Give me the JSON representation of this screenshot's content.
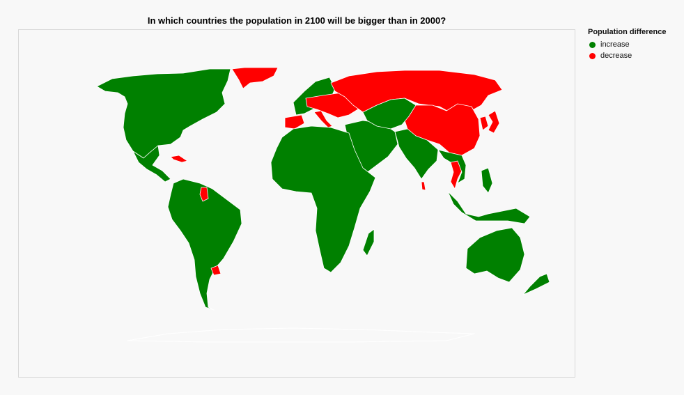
{
  "title": "In which countries the population in 2100 will be bigger than in 2000?",
  "legend": {
    "title": "Population difference",
    "items": [
      {
        "label": "increase",
        "color": "#008000"
      },
      {
        "label": "decrease",
        "color": "#ff0000"
      }
    ]
  },
  "map": {
    "projection": "equirectangular-style world map",
    "background": "#f8f8f8",
    "border_color": "#ffffff",
    "regions": [
      {
        "name": "North America",
        "category": "increase"
      },
      {
        "name": "Central America & Mexico",
        "category": "increase"
      },
      {
        "name": "Cuba",
        "category": "decrease"
      },
      {
        "name": "Greenland",
        "category": "decrease"
      },
      {
        "name": "South America",
        "category": "increase"
      },
      {
        "name": "Guyana",
        "category": "decrease"
      },
      {
        "name": "Uruguay",
        "category": "decrease"
      },
      {
        "name": "Western Europe",
        "category": "increase"
      },
      {
        "name": "Spain & Portugal",
        "category": "decrease"
      },
      {
        "name": "Italy",
        "category": "decrease"
      },
      {
        "name": "Eastern Europe",
        "category": "decrease"
      },
      {
        "name": "Russia",
        "category": "decrease"
      },
      {
        "name": "China",
        "category": "decrease"
      },
      {
        "name": "Japan",
        "category": "decrease"
      },
      {
        "name": "Korea",
        "category": "decrease"
      },
      {
        "name": "Thailand",
        "category": "decrease"
      },
      {
        "name": "Sri Lanka",
        "category": "decrease"
      },
      {
        "name": "Africa",
        "category": "increase"
      },
      {
        "name": "Madagascar",
        "category": "increase"
      },
      {
        "name": "Middle East",
        "category": "increase"
      },
      {
        "name": "Central Asia",
        "category": "increase"
      },
      {
        "name": "South Asia",
        "category": "increase"
      },
      {
        "name": "Southeast Asia",
        "category": "increase"
      },
      {
        "name": "Indonesia & Philippines",
        "category": "increase"
      },
      {
        "name": "Australia",
        "category": "increase"
      },
      {
        "name": "New Zealand",
        "category": "increase"
      }
    ]
  }
}
